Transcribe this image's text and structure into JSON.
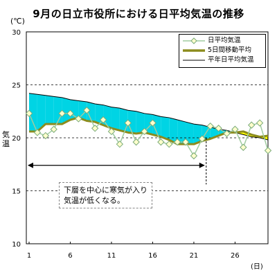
{
  "page": {
    "title": "9月の日立市役所における日平均気温の推移",
    "y_unit": "(℃)",
    "y_label": "気温",
    "x_unit": "(日)",
    "annotation_lines": [
      "下層を中心に寒気が入り",
      "気温が低くなる。"
    ]
  },
  "legend": {
    "daily": "日平均気温",
    "ma5": "5日間移動平均",
    "normal": "平年日平均気温"
  },
  "colors": {
    "daily_line": "#a0cca0",
    "daily_marker_fill": "#ffffcc",
    "ma5_line": "#8c8c1e",
    "normal_line": "#000000",
    "below_fill": "#00d4e4",
    "above_fill": "#ffff00",
    "grid": "#000000"
  },
  "chart_data": {
    "type": "line",
    "xlim": [
      1,
      30
    ],
    "ylim": [
      10,
      30
    ],
    "x_ticks": [
      1,
      6,
      11,
      16,
      21,
      26
    ],
    "y_ticks": [
      10,
      15,
      20,
      25,
      30
    ],
    "grid_y_dashed": [
      15,
      20,
      25
    ],
    "legend_position": "top-right",
    "marker_at_day": 22.5,
    "series": [
      {
        "name": "日平均気温",
        "x": [
          1,
          2,
          3,
          4,
          5,
          6,
          7,
          8,
          9,
          10,
          11,
          12,
          13,
          14,
          15,
          16,
          17,
          18,
          19,
          20,
          21,
          22,
          23,
          24,
          25,
          26,
          27,
          28,
          29,
          30
        ],
        "values": [
          22.3,
          20.5,
          20.2,
          20.8,
          22.3,
          22.3,
          21.8,
          22.6,
          20.9,
          21.7,
          20.6,
          19.4,
          21.4,
          19.6,
          20.6,
          21.4,
          19.6,
          19.4,
          19.6,
          19.6,
          18.3,
          19.9,
          21.1,
          20.9,
          20.4,
          20.8,
          19.1,
          21.2,
          21.4,
          18.8
        ]
      },
      {
        "name": "5日間移動平均",
        "x": [
          1,
          2,
          3,
          4,
          5,
          6,
          7,
          8,
          9,
          10,
          11,
          12,
          13,
          14,
          15,
          16,
          17,
          18,
          19,
          20,
          21,
          22,
          23,
          24,
          25,
          26,
          27,
          28,
          29,
          30
        ],
        "values": [
          20.6,
          20.6,
          21.3,
          21.3,
          21.3,
          21.7,
          21.9,
          21.6,
          21.5,
          21.2,
          20.9,
          20.7,
          20.5,
          20.4,
          20.5,
          20.3,
          20.1,
          19.8,
          19.4,
          19.4,
          19.4,
          19.7,
          19.9,
          20.2,
          20.5,
          20.5,
          20.6,
          20.3,
          20.1,
          20.2
        ]
      },
      {
        "name": "平年日平均気温",
        "x": [
          1,
          2,
          3,
          4,
          5,
          6,
          7,
          8,
          9,
          10,
          11,
          12,
          13,
          14,
          15,
          16,
          17,
          18,
          19,
          20,
          21,
          22,
          23,
          24,
          25,
          26,
          27,
          28,
          29,
          30
        ],
        "values": [
          24.2,
          24.1,
          24.0,
          23.9,
          23.8,
          23.6,
          23.5,
          23.4,
          23.2,
          23.1,
          22.9,
          22.8,
          22.6,
          22.5,
          22.3,
          22.2,
          22.0,
          21.9,
          21.7,
          21.5,
          21.3,
          21.2,
          21.0,
          20.8,
          20.7,
          20.5,
          20.3,
          20.1,
          20.0,
          19.8
        ]
      }
    ]
  }
}
